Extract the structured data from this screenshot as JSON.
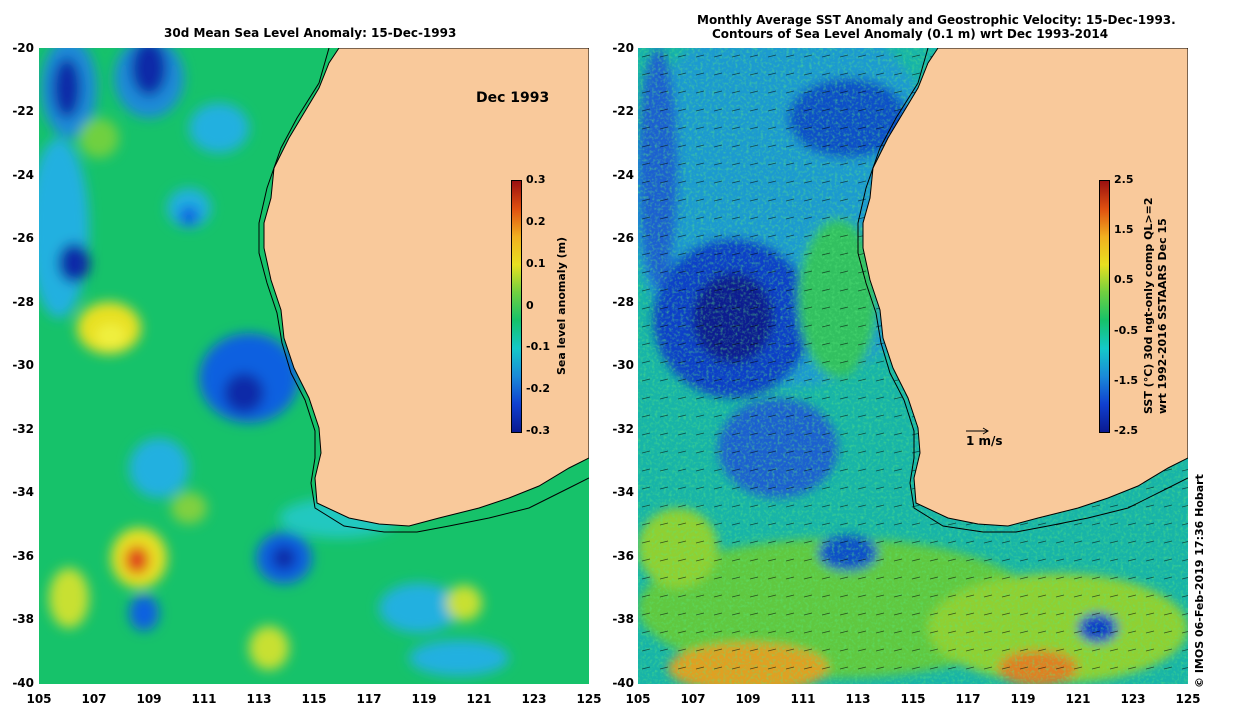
{
  "left_panel": {
    "title": "30d Mean Sea Level Anomaly: 15-Dec-1993",
    "date_label": "Dec 1993",
    "colorbar": {
      "title": "Sea level anomaly (m)",
      "ticks": [
        "0.3",
        "0.2",
        "0.1",
        "0",
        "-0.1",
        "-0.2",
        "-0.3"
      ],
      "range": [
        -0.3,
        0.3
      ]
    }
  },
  "right_panel": {
    "title_line1": "Monthly Average SST Anomaly  and Geostrophic Velocity: 15-Dec-1993.",
    "title_line2": "Contours of Sea Level Anomaly (0.1 m) wrt Dec 1993-2014",
    "vector_scale_label": "1 m/s",
    "colorbar": {
      "title_line1": "SST (°C) 30d ngt-only comp QL>=2",
      "title_line2": "wrt 1992-2016 SSTAARS Dec 15",
      "ticks": [
        "2.5",
        "1.5",
        "0.5",
        "-0.5",
        "-1.5",
        "-2.5"
      ],
      "range": [
        -2.5,
        2.5
      ]
    }
  },
  "axes": {
    "lat_labels": [
      "-20",
      "-22",
      "-24",
      "-26",
      "-28",
      "-30",
      "-32",
      "-34",
      "-36",
      "-38",
      "-40"
    ],
    "lon_labels": [
      "105",
      "107",
      "109",
      "111",
      "113",
      "115",
      "117",
      "119",
      "121",
      "123",
      "125"
    ],
    "lat_range": [
      -40,
      -20
    ],
    "lon_range": [
      105,
      125
    ]
  },
  "footer": "© IMOS 06-Feb-2019 17:36 Hobart",
  "colors": {
    "land": "#f9c99b",
    "ocean_base": "#1fbf5a",
    "ocean_cyan": "#14c8c8",
    "blue": "#1060e0",
    "dark_blue": "#0a1aa0",
    "yellow": "#e8e020",
    "orange": "#f08a1a",
    "red": "#d02010"
  }
}
